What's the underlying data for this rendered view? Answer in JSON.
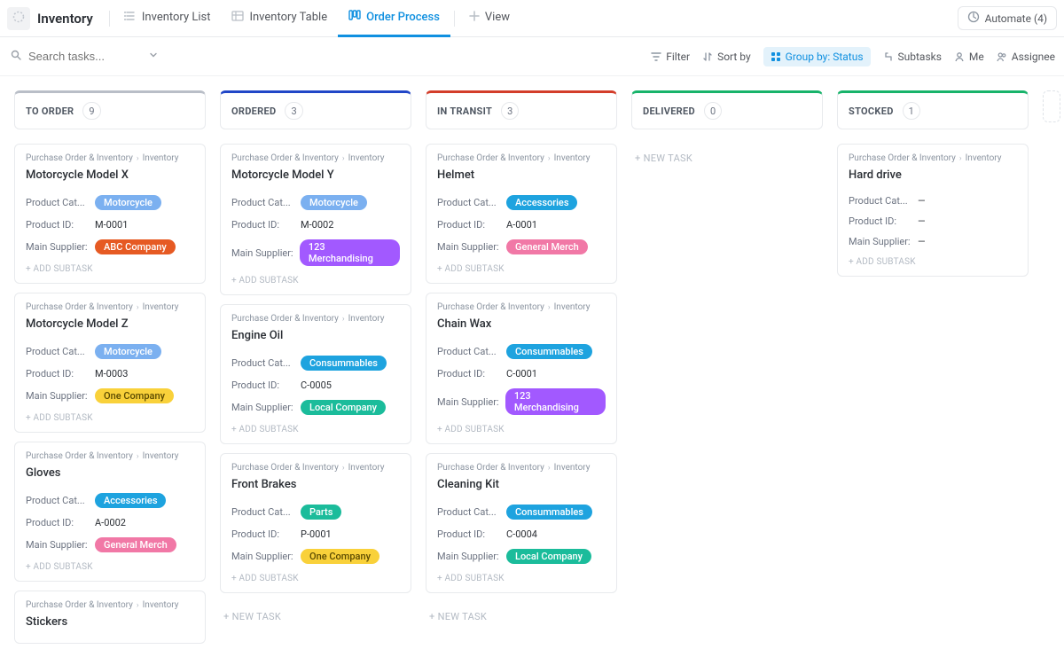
{
  "header": {
    "title": "Inventory",
    "tabs": [
      {
        "label": "Inventory List",
        "icon": "list"
      },
      {
        "label": "Inventory Table",
        "icon": "table"
      },
      {
        "label": "Order Process",
        "icon": "board",
        "active": true
      },
      {
        "label": "View",
        "icon": "plus"
      }
    ],
    "automate": {
      "label": "Automate",
      "count": 4
    }
  },
  "subbar": {
    "search_placeholder": "Search tasks...",
    "toolbar": [
      {
        "key": "filter",
        "label": "Filter"
      },
      {
        "key": "sort",
        "label": "Sort by"
      },
      {
        "key": "group",
        "label": "Group by: Status",
        "active": true
      },
      {
        "key": "subtasks",
        "label": "Subtasks"
      },
      {
        "key": "me",
        "label": "Me"
      },
      {
        "key": "assignee",
        "label": "Assignee"
      }
    ]
  },
  "board": {
    "breadcrumb": {
      "parent": "Purchase Order & Inventory",
      "child": "Inventory"
    },
    "field_labels": {
      "category": "Product Cat...",
      "id": "Product ID:",
      "supplier": "Main Supplier:"
    },
    "add_subtask": "+ ADD SUBTASK",
    "new_task": "+ NEW TASK",
    "pill_colors": {
      "Motorcycle": "#7bb0f0",
      "Accessories": "#1ea3df",
      "Consummables": "#1ea3df",
      "Parts": "#1bbc9b",
      "ABC Company": "#e65a23",
      "123 Merchandising": "#a259ff",
      "General Merch": "#f178a6",
      "One Company": "#f9d13a",
      "Local Company": "#1bbc9b"
    },
    "pill_text_colors": {
      "One Company": "#5b4a00"
    },
    "columns": [
      {
        "key": "to_order",
        "status": "TO ORDER",
        "count": 9,
        "accent": "#b9bec7",
        "cards": [
          {
            "title": "Motorcycle Model X",
            "category": "Motorcycle",
            "id": "M-0001",
            "supplier": "ABC Company"
          },
          {
            "title": "Motorcycle Model Z",
            "category": "Motorcycle",
            "id": "M-0003",
            "supplier": "One Company"
          },
          {
            "title": "Gloves",
            "category": "Accessories",
            "id": "A-0002",
            "supplier": "General Merch"
          },
          {
            "title": "Stickers"
          }
        ]
      },
      {
        "key": "ordered",
        "status": "ORDERED",
        "count": 3,
        "accent": "#2146c7",
        "cards": [
          {
            "title": "Motorcycle Model Y",
            "category": "Motorcycle",
            "id": "M-0002",
            "supplier": "123 Merchandising"
          },
          {
            "title": "Engine Oil",
            "category": "Consummables",
            "id": "C-0005",
            "supplier": "Local Company"
          },
          {
            "title": "Front Brakes",
            "category": "Parts",
            "id": "P-0001",
            "supplier": "One Company"
          }
        ],
        "show_new_task": true
      },
      {
        "key": "in_transit",
        "status": "IN TRANSIT",
        "count": 3,
        "accent": "#d33d2a",
        "cards": [
          {
            "title": "Helmet",
            "category": "Accessories",
            "id": "A-0001",
            "supplier": "General Merch"
          },
          {
            "title": "Chain Wax",
            "category": "Consummables",
            "id": "C-0001",
            "supplier": "123 Merchandising"
          },
          {
            "title": "Cleaning Kit",
            "category": "Consummables",
            "id": "C-0004",
            "supplier": "Local Company"
          }
        ],
        "show_new_task": true
      },
      {
        "key": "delivered",
        "status": "DELIVERED",
        "count": 0,
        "accent": "#17b36a",
        "cards": [],
        "show_new_task": true
      },
      {
        "key": "stocked",
        "status": "STOCKED",
        "count": 1,
        "accent": "#17b36a",
        "cards": [
          {
            "title": "Hard drive",
            "category_blank": "—",
            "id_blank": "—",
            "supplier_blank": "—"
          }
        ]
      }
    ]
  }
}
